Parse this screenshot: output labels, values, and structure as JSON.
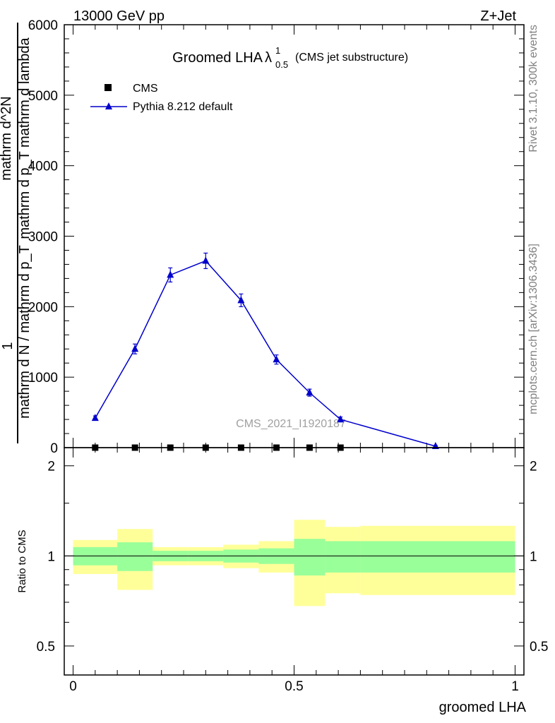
{
  "header": {
    "left_title": "13000 GeV pp",
    "right_title": "Z+Jet"
  },
  "side_labels": {
    "rivet": "Rivet 3.1.10,  300k events",
    "mcplots": "mcplots.cern.ch [arXiv:1306.3436]"
  },
  "y_axis_label": {
    "numerator": "1",
    "top_line1": "mathrm d^2N",
    "top_line2": "mathrm d p_T mathrm d lambda",
    "denominator": "mathrm d N / mathrm d p_T"
  },
  "chart_data": [
    {
      "type": "line",
      "title": "Groomed LHA",
      "title_symbol": "λ",
      "title_superscript": "1",
      "title_subscript": "0.5",
      "title_suffix": "(CMS jet substructure)",
      "watermark": "CMS_2021_I1920187",
      "xlabel": "groomed LHA",
      "xlim": [
        -0.02,
        1.02
      ],
      "ylim": [
        0,
        6000
      ],
      "yticks": [
        0,
        1000,
        2000,
        3000,
        4000,
        5000,
        6000
      ],
      "ytick_labels": [
        "0",
        "1000",
        "2000",
        "3000",
        "4000",
        "5000",
        "6000"
      ],
      "legend_position": "top-left",
      "series": [
        {
          "name": "CMS",
          "marker": "square",
          "color": "#000000",
          "x": [
            0.05,
            0.14,
            0.22,
            0.3,
            0.38,
            0.46,
            0.535,
            0.605
          ],
          "y": [
            0,
            0,
            0,
            0,
            0,
            0,
            0,
            0
          ]
        },
        {
          "name": "Pythia 8.212 default",
          "marker": "triangle",
          "color": "#0000cc",
          "x": [
            0.05,
            0.14,
            0.22,
            0.3,
            0.38,
            0.46,
            0.535,
            0.605,
            0.82
          ],
          "y": [
            420,
            1400,
            2450,
            2650,
            2090,
            1250,
            780,
            400,
            20
          ],
          "yerr": [
            30,
            70,
            100,
            110,
            90,
            65,
            50,
            35,
            10
          ]
        }
      ]
    },
    {
      "type": "area",
      "ylabel": "Ratio to CMS",
      "ylim": [
        0.4,
        2.3
      ],
      "yticks": [
        0.5,
        1,
        2
      ],
      "ytick_labels": [
        "0.5",
        "1",
        "2"
      ],
      "xticks": [
        0,
        0.5,
        1
      ],
      "xtick_labels": [
        "0",
        "0.5",
        "1"
      ],
      "bands": [
        {
          "x0": 0.0,
          "x1": 0.1,
          "green_lo": 0.93,
          "green_hi": 1.07,
          "yellow_lo": 0.87,
          "yellow_hi": 1.13
        },
        {
          "x0": 0.1,
          "x1": 0.18,
          "green_lo": 0.89,
          "green_hi": 1.11,
          "yellow_lo": 0.77,
          "yellow_hi": 1.23
        },
        {
          "x0": 0.18,
          "x1": 0.26,
          "green_lo": 0.96,
          "green_hi": 1.04,
          "yellow_lo": 0.93,
          "yellow_hi": 1.07
        },
        {
          "x0": 0.26,
          "x1": 0.34,
          "green_lo": 0.96,
          "green_hi": 1.04,
          "yellow_lo": 0.93,
          "yellow_hi": 1.07
        },
        {
          "x0": 0.34,
          "x1": 0.42,
          "green_lo": 0.95,
          "green_hi": 1.05,
          "yellow_lo": 0.91,
          "yellow_hi": 1.09
        },
        {
          "x0": 0.42,
          "x1": 0.5,
          "green_lo": 0.94,
          "green_hi": 1.06,
          "yellow_lo": 0.88,
          "yellow_hi": 1.12
        },
        {
          "x0": 0.5,
          "x1": 0.57,
          "green_lo": 0.86,
          "green_hi": 1.14,
          "yellow_lo": 0.68,
          "yellow_hi": 1.32
        },
        {
          "x0": 0.57,
          "x1": 0.65,
          "green_lo": 0.88,
          "green_hi": 1.12,
          "yellow_lo": 0.75,
          "yellow_hi": 1.25
        },
        {
          "x0": 0.65,
          "x1": 1.0,
          "green_lo": 0.88,
          "green_hi": 1.12,
          "yellow_lo": 0.74,
          "yellow_hi": 1.26
        }
      ],
      "reference_line": 1
    }
  ],
  "colors": {
    "pythia": "#0000cc",
    "band_green": "#99ff99",
    "band_yellow": "#ffff99",
    "watermark": "#a0a0a0",
    "side_text": "#808080"
  }
}
